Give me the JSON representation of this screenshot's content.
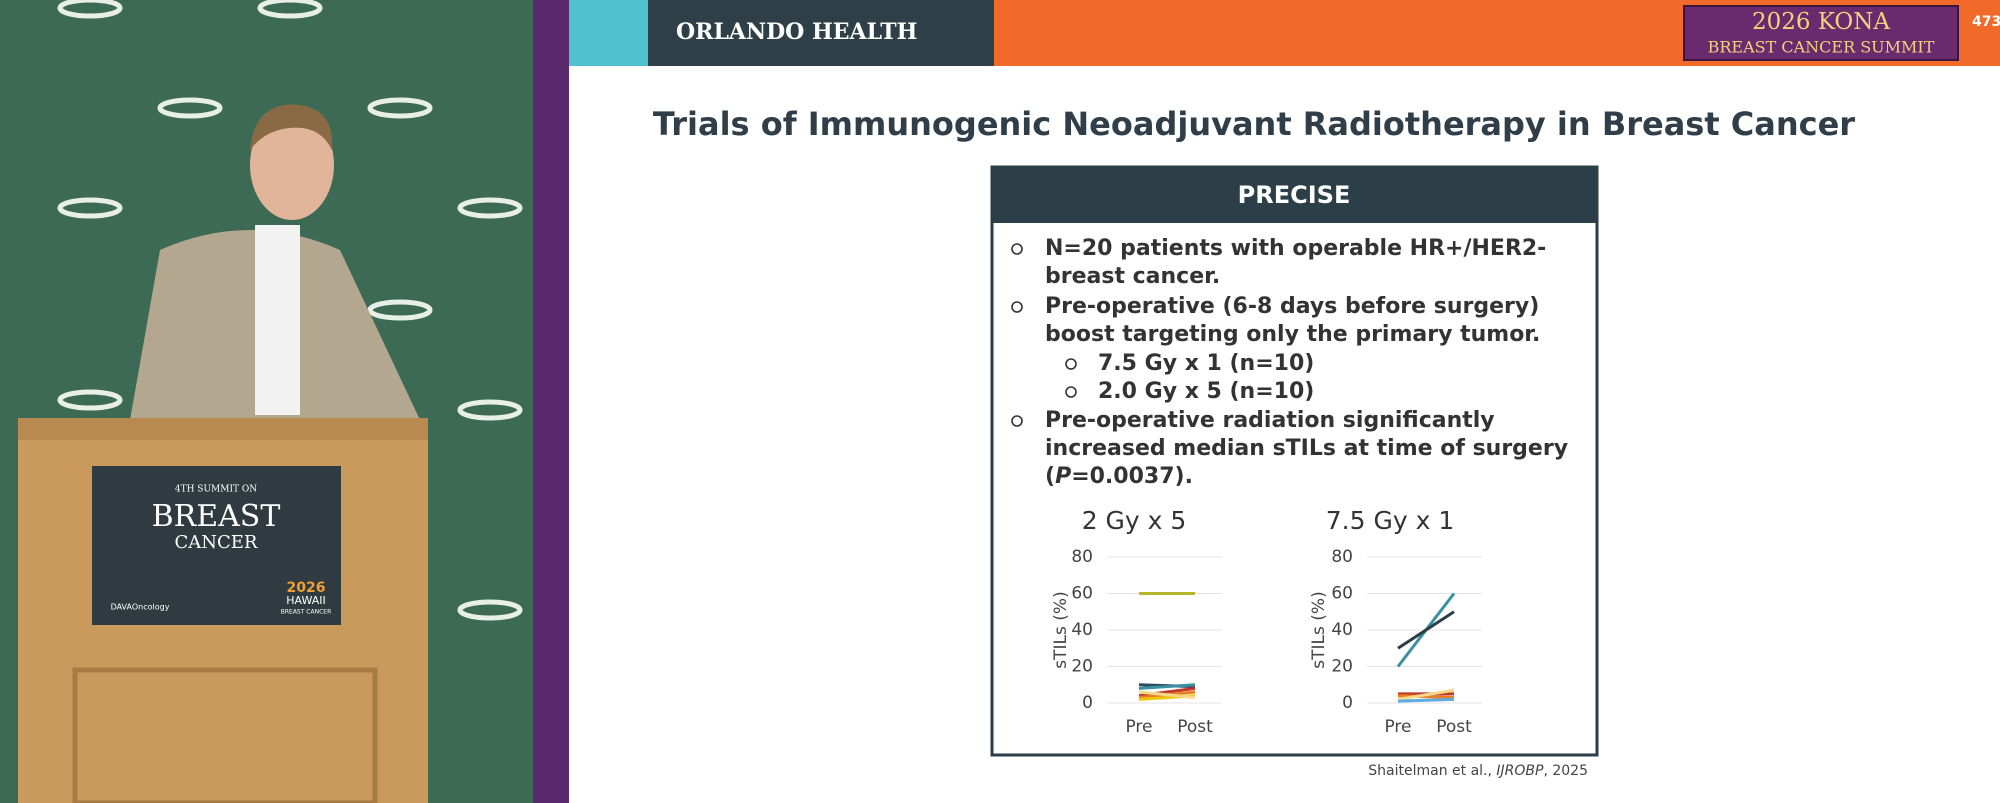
{
  "header": {
    "brand": "ORLANDO HEALTH",
    "event_line1": "2026 KONA",
    "event_line2": "BREAST CANCER SUMMIT",
    "slide_number": "473"
  },
  "podium": {
    "small": "4TH SUMMIT ON",
    "big": "BREAST",
    "sub": "CANCER",
    "sponsor": "DAVAOncology",
    "year": "2026",
    "place": "HAWAII",
    "place_sub": "BREAST CANCER"
  },
  "slide": {
    "title": "Trials of Immunogenic Neoadjuvant Radiotherapy in Breast Cancer",
    "box_title": "PRECISE",
    "bullets": [
      [
        "N=20 patients with operable HR+/HER2-",
        "breast cancer."
      ],
      [
        "Pre-operative (6-8 days before surgery)",
        "boost targeting only the primary tumor."
      ],
      [
        "Pre-operative radiation significantly",
        "increased median sTILs at time of surgery"
      ]
    ],
    "last_line": [
      "(",
      "P",
      "=0.0037)."
    ],
    "sub_bullets": [
      "7.5 Gy x 1 (n=10)",
      "2.0 Gy x 5 (n=10)"
    ],
    "citation": [
      "Shaitelman et al., ",
      "IJROBP",
      ", 2025"
    ]
  },
  "chart_data": [
    {
      "type": "line",
      "title": "2 Gy x 5",
      "y_label": "sTILs (%)",
      "categories": [
        "Pre",
        "Post"
      ],
      "ylim": [
        0,
        80
      ],
      "yticks": [
        0,
        20,
        40,
        60,
        80
      ],
      "grid": true,
      "series": [
        {
          "color": "#b5b82a",
          "values": [
            60,
            60
          ]
        },
        {
          "color": "#2c4a5a",
          "values": [
            10,
            9
          ]
        },
        {
          "color": "#3a8fa0",
          "values": [
            8,
            10
          ]
        },
        {
          "color": "#c0392b",
          "values": [
            4,
            8
          ]
        },
        {
          "color": "#e67e22",
          "values": [
            3,
            6
          ]
        },
        {
          "color": "#f1c40f",
          "values": [
            2,
            4
          ]
        },
        {
          "color": "#f5d88a",
          "values": [
            6,
            3
          ]
        }
      ]
    },
    {
      "type": "line",
      "title": "7.5 Gy x 1",
      "y_label": "sTILs (%)",
      "categories": [
        "Pre",
        "Post"
      ],
      "ylim": [
        0,
        80
      ],
      "yticks": [
        0,
        20,
        40,
        60,
        80
      ],
      "grid": true,
      "series": [
        {
          "color": "#3a8fa0",
          "values": [
            20,
            60
          ]
        },
        {
          "color": "#2c3e48",
          "values": [
            30,
            50
          ]
        },
        {
          "color": "#c0392b",
          "values": [
            5,
            5
          ]
        },
        {
          "color": "#e67e22",
          "values": [
            4,
            3
          ]
        },
        {
          "color": "#f5d88a",
          "values": [
            2,
            7
          ]
        },
        {
          "color": "#5dade2",
          "values": [
            1,
            2
          ]
        }
      ]
    }
  ]
}
